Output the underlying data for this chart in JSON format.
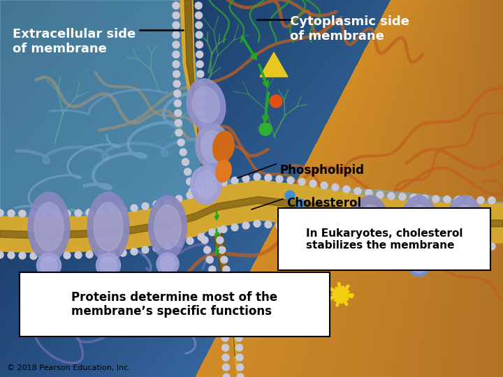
{
  "labels": {
    "extracellular": "Extracellular side\nof membrane",
    "cytoplasmic": "Cytoplasmic side\nof membrane",
    "phospholipid": "Phospholipid",
    "cholesterol": "Cholesterol",
    "eukaryotes_box": "In Eukaryotes, cholesterol\nstabilizes the membrane",
    "proteins_box": "Proteins determine most of the\nmembrane’s specific functions",
    "copyright": "© 2018 Pearson Education, Inc."
  },
  "fig_width": 7.2,
  "fig_height": 5.4,
  "dpi": 100
}
